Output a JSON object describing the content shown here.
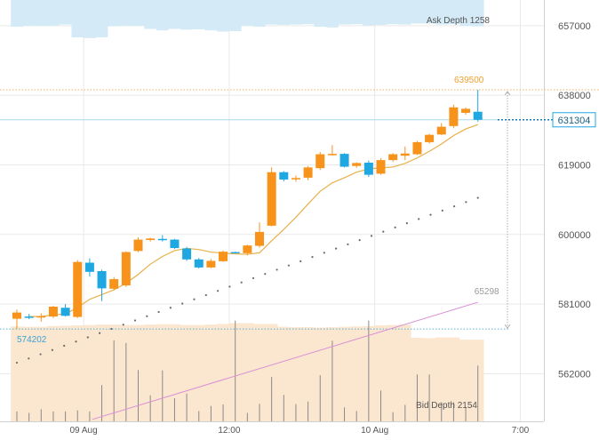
{
  "chart_data": {
    "type": "candlestick",
    "y_axis": {
      "ticks": [
        657000,
        638000,
        619000,
        600000,
        581000,
        562000
      ],
      "position": "right",
      "range": [
        549000,
        664000
      ]
    },
    "x_axis": {
      "ticks": [
        {
          "label": "09 Aug",
          "candle_index": 5.5
        },
        {
          "label": "12:00",
          "candle_index": 17.5
        },
        {
          "label": "10 Aug",
          "candle_index": 29.5
        },
        {
          "label": "7:00",
          "candle_index": 41.5
        }
      ]
    },
    "grid": true,
    "candles": [
      {
        "o": 577000,
        "h": 579500,
        "l": 574202,
        "c": 578700
      },
      {
        "o": 577600,
        "h": 578300,
        "l": 576900,
        "c": 577400
      },
      {
        "o": 577500,
        "h": 578500,
        "l": 576200,
        "c": 577700
      },
      {
        "o": 577600,
        "h": 580500,
        "l": 577200,
        "c": 580300
      },
      {
        "o": 580000,
        "h": 581000,
        "l": 577600,
        "c": 577800
      },
      {
        "o": 577500,
        "h": 593000,
        "l": 577200,
        "c": 592500
      },
      {
        "o": 592300,
        "h": 593500,
        "l": 588500,
        "c": 589800
      },
      {
        "o": 590000,
        "h": 590400,
        "l": 581800,
        "c": 585300
      },
      {
        "o": 585200,
        "h": 588400,
        "l": 584800,
        "c": 587800
      },
      {
        "o": 586100,
        "h": 595400,
        "l": 585700,
        "c": 595200
      },
      {
        "o": 595500,
        "h": 599200,
        "l": 595200,
        "c": 598600
      },
      {
        "o": 598500,
        "h": 599100,
        "l": 598100,
        "c": 598900
      },
      {
        "o": 598800,
        "h": 599800,
        "l": 598100,
        "c": 598700
      },
      {
        "o": 598600,
        "h": 598800,
        "l": 596000,
        "c": 596300
      },
      {
        "o": 596200,
        "h": 596600,
        "l": 592800,
        "c": 593200
      },
      {
        "o": 593200,
        "h": 593600,
        "l": 590700,
        "c": 591000
      },
      {
        "o": 591000,
        "h": 593300,
        "l": 590800,
        "c": 592800
      },
      {
        "o": 592700,
        "h": 595600,
        "l": 592500,
        "c": 595300
      },
      {
        "o": 595200,
        "h": 595300,
        "l": 595000,
        "c": 595100
      },
      {
        "o": 594900,
        "h": 597200,
        "l": 594300,
        "c": 597000
      },
      {
        "o": 596900,
        "h": 603300,
        "l": 596400,
        "c": 600700
      },
      {
        "o": 602400,
        "h": 618300,
        "l": 602200,
        "c": 617000
      },
      {
        "o": 617000,
        "h": 617300,
        "l": 614500,
        "c": 615000
      },
      {
        "o": 615100,
        "h": 616100,
        "l": 614400,
        "c": 615400
      },
      {
        "o": 615500,
        "h": 618700,
        "l": 614800,
        "c": 618300
      },
      {
        "o": 618100,
        "h": 622500,
        "l": 617600,
        "c": 621900
      },
      {
        "o": 621700,
        "h": 624400,
        "l": 621500,
        "c": 622000
      },
      {
        "o": 622000,
        "h": 622200,
        "l": 618300,
        "c": 618500
      },
      {
        "o": 618700,
        "h": 619700,
        "l": 618200,
        "c": 619500
      },
      {
        "o": 619600,
        "h": 620200,
        "l": 615700,
        "c": 616300
      },
      {
        "o": 616600,
        "h": 620800,
        "l": 616300,
        "c": 620300
      },
      {
        "o": 620300,
        "h": 622200,
        "l": 619800,
        "c": 621900
      },
      {
        "o": 621500,
        "h": 624000,
        "l": 620300,
        "c": 622100
      },
      {
        "o": 621900,
        "h": 625500,
        "l": 621700,
        "c": 625200
      },
      {
        "o": 625200,
        "h": 627500,
        "l": 624800,
        "c": 627200
      },
      {
        "o": 627300,
        "h": 630400,
        "l": 627100,
        "c": 629400
      },
      {
        "o": 629600,
        "h": 635400,
        "l": 629000,
        "c": 634700
      },
      {
        "o": 633200,
        "h": 634700,
        "l": 632700,
        "c": 634300
      },
      {
        "o": 633500,
        "h": 639500,
        "l": 630800,
        "c": 631304
      }
    ],
    "moving_average": [
      null,
      577600,
      577600,
      578100,
      578300,
      580100,
      582300,
      583600,
      584900,
      586700,
      589100,
      591900,
      594000,
      595600,
      596200,
      595900,
      595200,
      594900,
      594700,
      594600,
      595000,
      598300,
      601400,
      604700,
      608300,
      611800,
      614100,
      615500,
      617000,
      617900,
      618200,
      618400,
      619400,
      620900,
      622700,
      624700,
      627000,
      628800,
      630000
    ],
    "dotted_line_start": 565000,
    "dotted_line_end": 610000,
    "pink_line_start": 549500,
    "pink_line_end": 581500,
    "bid_depth_area_top": [
      574900,
      574800,
      574800,
      575000,
      575100,
      575200,
      575300,
      575400,
      575400,
      575300,
      575300,
      575400,
      575500,
      575500,
      575300,
      575300,
      575400,
      575600,
      575800,
      575800,
      575600,
      575600,
      574800,
      574700,
      574700,
      574600,
      574700,
      574800,
      574900,
      575000,
      575200,
      575300,
      575400,
      571800,
      571700,
      571900,
      571900,
      571300,
      571300
    ],
    "bid_volume_spikes": [
      551700,
      551300,
      552300,
      551700,
      551700,
      552000,
      551700,
      558900,
      571100,
      570400,
      563000,
      556100,
      562900,
      555300,
      556600,
      551800,
      553200,
      553600,
      576500,
      551300,
      553800,
      561100,
      556200,
      553700,
      554400,
      561600,
      571000,
      552800,
      551800,
      576500,
      557400,
      551500,
      553500,
      561800,
      561800,
      554200,
      554200,
      552800,
      564200
    ],
    "ask_depth_bottom": [
      656700,
      657000,
      656900,
      657000,
      657300,
      653800,
      653600,
      653800,
      656800,
      657000,
      656900,
      656100,
      655700,
      656100,
      655900,
      656000,
      655700,
      655400,
      655500,
      657000,
      656700,
      657300,
      657200,
      657300,
      657400,
      656700,
      656500,
      657300,
      657400,
      657100,
      657200,
      657400,
      657300,
      657600,
      657600,
      657300,
      657400,
      656900,
      656800
    ],
    "labels": {
      "ask_depth": "Ask Depth 1258",
      "bid_depth": "Bid Depth 2154",
      "high": "639500",
      "low": "574202",
      "range": "65298",
      "last": "631304"
    },
    "colors": {
      "up": "#f7931a",
      "down": "#1ea7e1",
      "moving_average": "#e8b04a",
      "pink_line": "#d98fd6",
      "dotted_line": "#6a6a6a",
      "ask_depth_fill": "#d4eaf7",
      "bid_depth_fill": "#fbe6cf",
      "last_price": "#1ea7e1",
      "high_price": "#f0a030",
      "low_price": "#3aa3d4",
      "grid": "#e9e9e9",
      "axis_text": "#555555"
    }
  }
}
